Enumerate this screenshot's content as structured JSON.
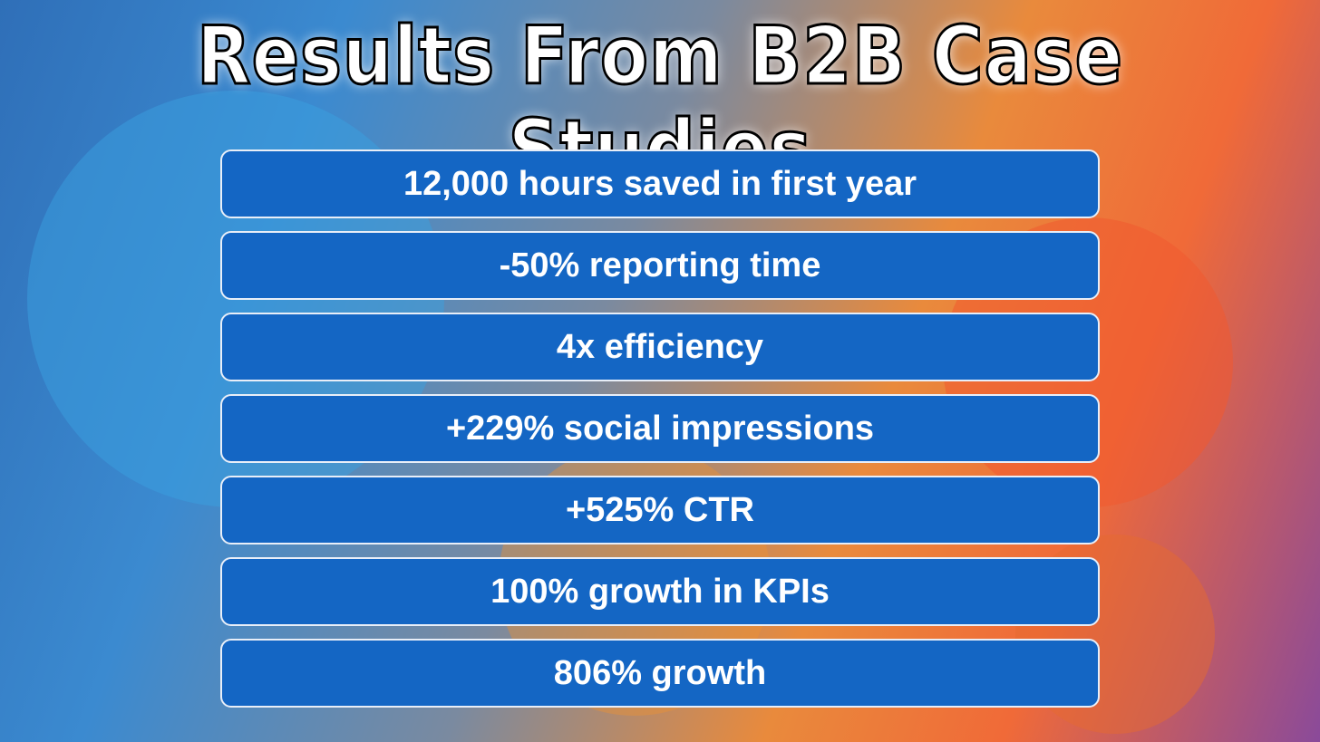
{
  "title": "Results From B2B Case Studies",
  "items": [
    "12,000 hours saved in first year",
    "-50% reporting time",
    "4x efficiency",
    "+229% social impressions",
    "+525% CTR",
    "100% growth in KPIs",
    "806% growth"
  ]
}
